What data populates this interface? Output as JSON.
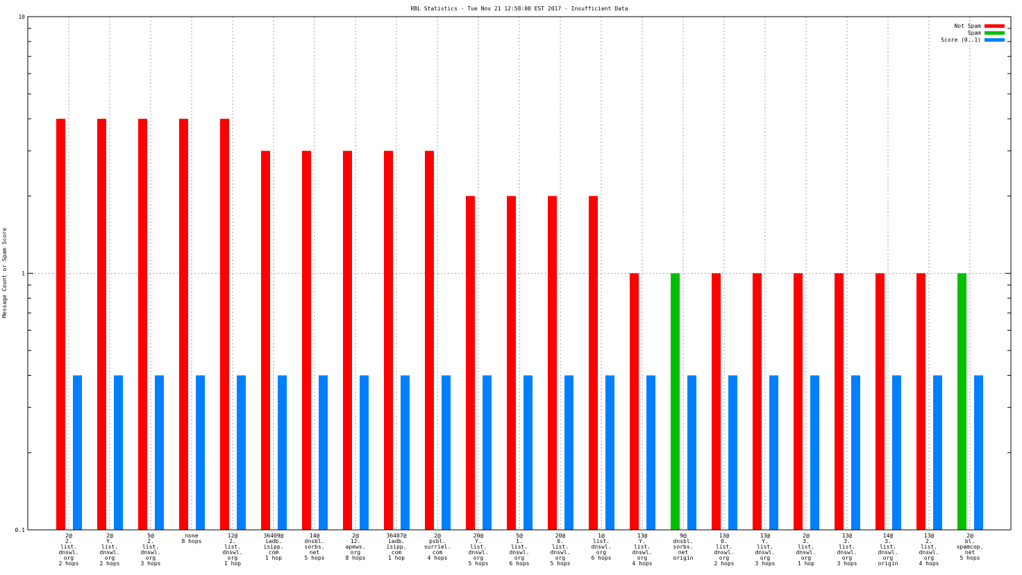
{
  "chart_data": {
    "type": "bar",
    "title": "RBL Statistics - Tue Nov 21 12:58:08 EST 2017 - Insufficient Data",
    "xlabel": "",
    "ylabel": "Message Count or Spam Score",
    "yscale": "log",
    "ylim": [
      0.1,
      10
    ],
    "yticks": [
      "10",
      "1",
      "0.1"
    ],
    "grid": true,
    "legend_position": "top-right",
    "categories": [
      [
        "2@",
        "2.",
        "list.",
        "dnswl.",
        "org",
        "2 hops"
      ],
      [
        "2@",
        "Y.",
        "list.",
        "dnswl.",
        "org",
        "2 hops"
      ],
      [
        "5@",
        "2.",
        "list.",
        "dnswl.",
        "org",
        "3 hops"
      ],
      [
        "none",
        "8 hops"
      ],
      [
        "12@",
        "2.",
        "list.",
        "dnswl.",
        "org",
        "1 hop"
      ],
      [
        "36409@",
        "iadb.",
        "isipp.",
        "com",
        "1 hop"
      ],
      [
        "14@",
        "dnsbl.",
        "sorbs.",
        "net",
        "5 hops"
      ],
      [
        "2@",
        "12.",
        "apews.",
        "org",
        "8 hops"
      ],
      [
        "36407@",
        "iadb.",
        "isipp.",
        "com",
        "1 hop"
      ],
      [
        "2@",
        "psbl.",
        "surriel.",
        "com",
        "4 hops"
      ],
      [
        "20@",
        "Y.",
        "list.",
        "dnswl.",
        "org",
        "5 hops"
      ],
      [
        "5@",
        "1.",
        "list.",
        "dnswl.",
        "org",
        "6 hops"
      ],
      [
        "20@",
        "0.",
        "list.",
        "dnswl.",
        "org",
        "5 hops"
      ],
      [
        "1@",
        "list.",
        "dnswl.",
        "org",
        "6 hops"
      ],
      [
        "13@",
        "Y.",
        "list.",
        "dnswl.",
        "org",
        "4 hops"
      ],
      [
        "9@",
        "dnsbl.",
        "sorbs.",
        "net",
        "origin"
      ],
      [
        "13@",
        "0.",
        "list.",
        "dnswl.",
        "org",
        "2 hops"
      ],
      [
        "13@",
        "Y.",
        "list.",
        "dnswl.",
        "org",
        "3 hops"
      ],
      [
        "2@",
        "3.",
        "list.",
        "dnswl.",
        "org",
        "1 hop"
      ],
      [
        "13@",
        "3.",
        "list.",
        "dnswl.",
        "org",
        "3 hops"
      ],
      [
        "14@",
        "3.",
        "list.",
        "dnswl.",
        "org",
        "origin"
      ],
      [
        "13@",
        "2.",
        "list.",
        "dnswl.",
        "org",
        "4 hops"
      ],
      [
        "2@",
        "bl.",
        "spamcop.",
        "net",
        "5 hops"
      ]
    ],
    "series": [
      {
        "name": "Not Spam",
        "color": "#ff0000",
        "values": [
          4,
          4,
          4,
          4,
          4,
          3,
          3,
          3,
          3,
          3,
          2,
          2,
          2,
          2,
          1,
          null,
          1,
          1,
          1,
          1,
          1,
          1,
          null
        ]
      },
      {
        "name": "Spam",
        "color": "#00c000",
        "values": [
          null,
          null,
          null,
          null,
          null,
          null,
          null,
          null,
          null,
          null,
          null,
          null,
          null,
          null,
          null,
          1,
          null,
          null,
          null,
          null,
          null,
          null,
          1
        ]
      },
      {
        "name": "Score (0..1)",
        "color": "#0080ff",
        "values": [
          0.4,
          0.4,
          0.4,
          0.4,
          0.4,
          0.4,
          0.4,
          0.4,
          0.4,
          0.4,
          0.4,
          0.4,
          0.4,
          0.4,
          0.4,
          0.4,
          0.4,
          0.4,
          0.4,
          0.4,
          0.4,
          0.4,
          0.4
        ]
      }
    ]
  }
}
